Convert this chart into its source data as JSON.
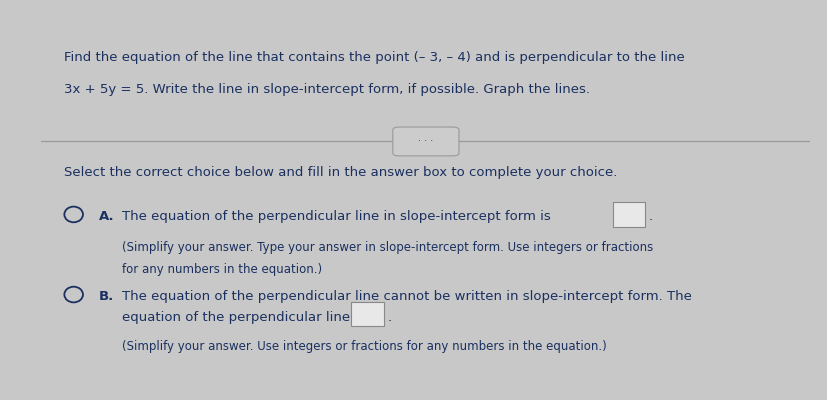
{
  "header_bg_color": "#3a5faa",
  "body_bg_color": "#c8c8c8",
  "content_bg_color": "#d4d4d4",
  "text_color": "#1a3060",
  "font_size_main": 9.5,
  "font_size_small": 8.5,
  "title_text_line1": "Find the equation of the line that contains the point (– 3, – 4) and is perpendicular to the line",
  "title_text_line2": "3x + 5y = 5. Write the line in slope-intercept form, if possible. Graph the lines.",
  "divider_text": "· · ·",
  "select_text": "Select the correct choice below and fill in the answer box to complete your choice.",
  "option_a_label": "A.",
  "option_a_text": "The equation of the perpendicular line in slope-intercept form is",
  "option_a_subtext_line1": "(Simplify your answer. Type your answer in slope-intercept form. Use integers or fractions",
  "option_a_subtext_line2": "for any numbers in the equation.)",
  "option_b_label": "B.",
  "option_b_text_line1": "The equation of the perpendicular line cannot be written in slope-intercept form. The",
  "option_b_text_line2": "equation of the perpendicular line is",
  "option_b_subtext": "(Simplify your answer. Use integers or fractions for any numbers in the equation.)"
}
